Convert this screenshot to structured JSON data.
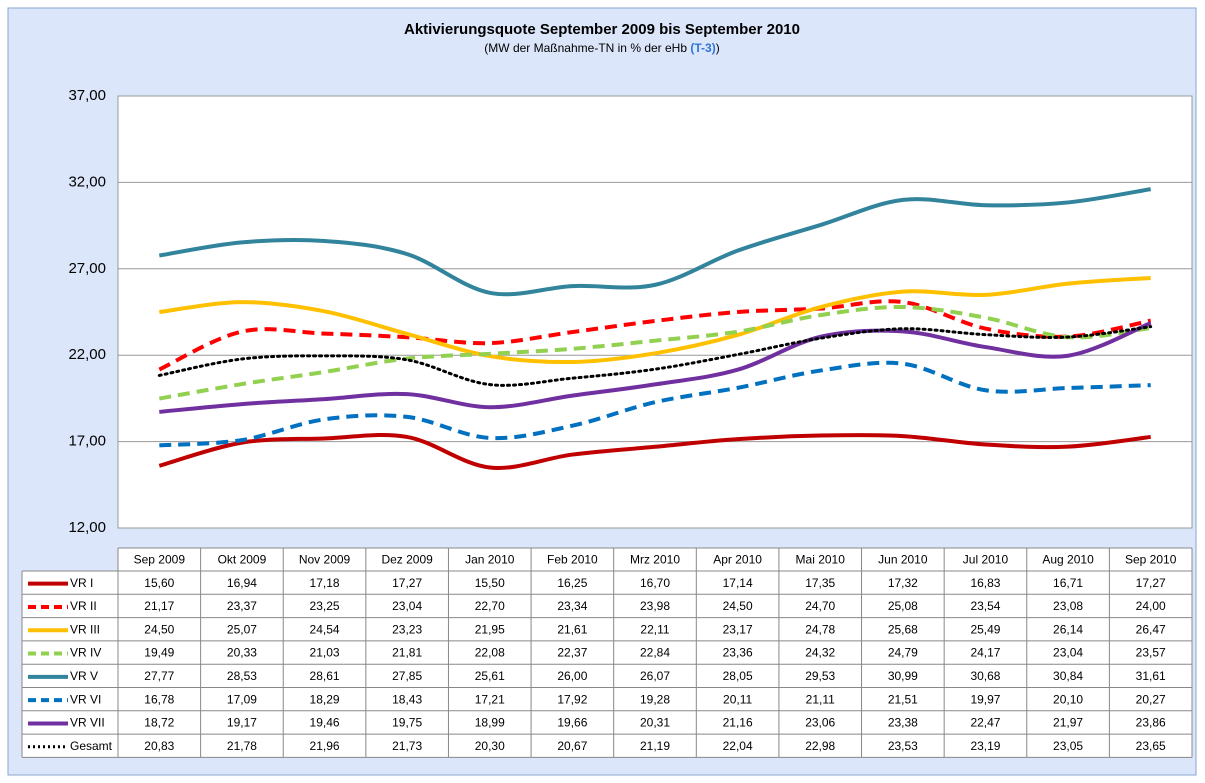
{
  "chart_data": {
    "type": "line",
    "title": "Aktivierungsquote September 2009 bis September 2010",
    "subtitle": "(MW der Maßnahme-TN in % der eHb",
    "subtitle_highlight": "(T-3)",
    "subtitle_end": ")",
    "categories": [
      "Sep 2009",
      "Okt 2009",
      "Nov 2009",
      "Dez 2009",
      "Jan 2010",
      "Feb 2010",
      "Mrz 2010",
      "Apr 2010",
      "Mai 2010",
      "Jun 2010",
      "Jul 2010",
      "Aug 2010",
      "Sep 2010"
    ],
    "ylim": [
      12,
      37
    ],
    "yticks": [
      {
        "value": 12,
        "label": "12,00"
      },
      {
        "value": 17,
        "label": "17,00"
      },
      {
        "value": 22,
        "label": "22,00"
      },
      {
        "value": 27,
        "label": "27,00"
      },
      {
        "value": 32,
        "label": "32,00"
      },
      {
        "value": 37,
        "label": "37,00"
      }
    ],
    "grid": true,
    "series": [
      {
        "name": "VR I",
        "color": "#c00000",
        "dash": "solid",
        "values": [
          15.6,
          16.94,
          17.18,
          17.27,
          15.5,
          16.25,
          16.7,
          17.14,
          17.35,
          17.32,
          16.83,
          16.71,
          17.27
        ],
        "value_labels": [
          "15,60",
          "16,94",
          "17,18",
          "17,27",
          "15,50",
          "16,25",
          "16,70",
          "17,14",
          "17,35",
          "17,32",
          "16,83",
          "16,71",
          "17,27"
        ]
      },
      {
        "name": "VR II",
        "color": "#ff0000",
        "dash": "dashed",
        "values": [
          21.17,
          23.37,
          23.25,
          23.04,
          22.7,
          23.34,
          23.98,
          24.5,
          24.7,
          25.08,
          23.54,
          23.08,
          24.0
        ],
        "value_labels": [
          "21,17",
          "23,37",
          "23,25",
          "23,04",
          "22,70",
          "23,34",
          "23,98",
          "24,50",
          "24,70",
          "25,08",
          "23,54",
          "23,08",
          "24,00"
        ]
      },
      {
        "name": "VR III",
        "color": "#ffc000",
        "dash": "solid",
        "values": [
          24.5,
          25.07,
          24.54,
          23.23,
          21.95,
          21.61,
          22.11,
          23.17,
          24.78,
          25.68,
          25.49,
          26.14,
          26.47
        ],
        "value_labels": [
          "24,50",
          "25,07",
          "24,54",
          "23,23",
          "21,95",
          "21,61",
          "22,11",
          "23,17",
          "24,78",
          "25,68",
          "25,49",
          "26,14",
          "26,47"
        ]
      },
      {
        "name": "VR IV",
        "color": "#92d050",
        "dash": "dashed",
        "values": [
          19.49,
          20.33,
          21.03,
          21.81,
          22.08,
          22.37,
          22.84,
          23.36,
          24.32,
          24.79,
          24.17,
          23.04,
          23.57
        ],
        "value_labels": [
          "19,49",
          "20,33",
          "21,03",
          "21,81",
          "22,08",
          "22,37",
          "22,84",
          "23,36",
          "24,32",
          "24,79",
          "24,17",
          "23,04",
          "23,57"
        ]
      },
      {
        "name": "VR V",
        "color": "#31849b",
        "dash": "solid",
        "values": [
          27.77,
          28.53,
          28.61,
          27.85,
          25.61,
          26.0,
          26.07,
          28.05,
          29.53,
          30.99,
          30.68,
          30.84,
          31.61
        ],
        "value_labels": [
          "27,77",
          "28,53",
          "28,61",
          "27,85",
          "25,61",
          "26,00",
          "26,07",
          "28,05",
          "29,53",
          "30,99",
          "30,68",
          "30,84",
          "31,61"
        ]
      },
      {
        "name": "VR VI",
        "color": "#0070c0",
        "dash": "dashed",
        "values": [
          16.78,
          17.09,
          18.29,
          18.43,
          17.21,
          17.92,
          19.28,
          20.11,
          21.11,
          21.51,
          19.97,
          20.1,
          20.27
        ],
        "value_labels": [
          "16,78",
          "17,09",
          "18,29",
          "18,43",
          "17,21",
          "17,92",
          "19,28",
          "20,11",
          "21,11",
          "21,51",
          "19,97",
          "20,10",
          "20,27"
        ]
      },
      {
        "name": "VR VII",
        "color": "#7030a0",
        "dash": "solid",
        "values": [
          18.72,
          19.17,
          19.46,
          19.75,
          18.99,
          19.66,
          20.31,
          21.16,
          23.06,
          23.38,
          22.47,
          21.97,
          23.86
        ],
        "value_labels": [
          "18,72",
          "19,17",
          "19,46",
          "19,75",
          "18,99",
          "19,66",
          "20,31",
          "21,16",
          "23,06",
          "23,38",
          "22,47",
          "21,97",
          "23,86"
        ]
      },
      {
        "name": "Gesamt",
        "color": "#000000",
        "dash": "dotted",
        "values": [
          20.83,
          21.78,
          21.96,
          21.73,
          20.3,
          20.67,
          21.19,
          22.04,
          22.98,
          23.53,
          23.19,
          23.05,
          23.65
        ],
        "value_labels": [
          "20,83",
          "21,78",
          "21,96",
          "21,73",
          "20,30",
          "20,67",
          "21,19",
          "22,04",
          "22,98",
          "23,53",
          "23,19",
          "23,05",
          "23,65"
        ]
      }
    ]
  }
}
